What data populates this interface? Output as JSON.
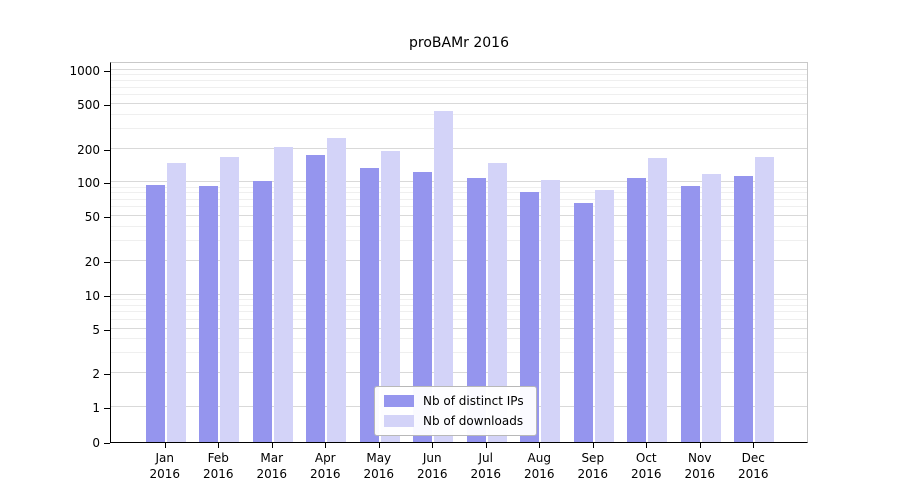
{
  "chart_data": {
    "type": "bar",
    "title": "proBAMr 2016",
    "x_tick_months": [
      "Jan",
      "Feb",
      "Mar",
      "Apr",
      "May",
      "Jun",
      "Jul",
      "Aug",
      "Sep",
      "Oct",
      "Nov",
      "Dec"
    ],
    "x_tick_year": "2016",
    "y_ticks": [
      0,
      1,
      2,
      5,
      10,
      20,
      50,
      100,
      200,
      500,
      1000
    ],
    "y_scale": "symlog",
    "ylim": [
      0,
      1200
    ],
    "grid": true,
    "legend_position": "lower center",
    "series": [
      {
        "name": "Nb of distinct IPs",
        "color": "#9595ee",
        "values": [
          95,
          92,
          103,
          175,
          135,
          125,
          110,
          82,
          65,
          110,
          92,
          115
        ]
      },
      {
        "name": "Nb of downloads",
        "color": "#d3d3f8",
        "values": [
          150,
          168,
          205,
          250,
          190,
          430,
          150,
          105,
          85,
          165,
          120,
          170
        ]
      }
    ]
  }
}
